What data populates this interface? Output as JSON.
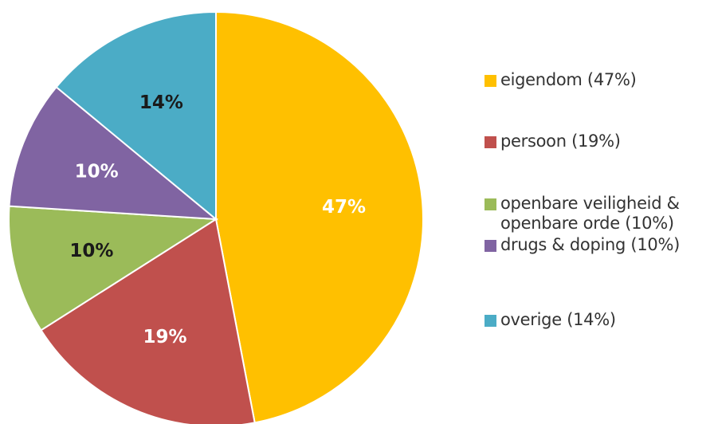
{
  "chart_data": {
    "type": "pie",
    "start": "12 o'clock",
    "direction": "clockwise",
    "slices": [
      {
        "label": "eigendom (47%)",
        "legend_label": "eigendom (47%)",
        "value": 47,
        "data_label": "47%",
        "color": "#FFC000",
        "label_color": "#FFFFFF"
      },
      {
        "label": "persoon (19%)",
        "legend_label": "persoon (19%)",
        "value": 19,
        "data_label": "19%",
        "color": "#C0504D",
        "label_color": "#FFFFFF"
      },
      {
        "label": "openbare veiligheid & openbare orde (10%)",
        "legend_label": "openbare veiligheid &\nopenbare orde (10%)",
        "value": 10,
        "data_label": "10%",
        "color": "#9BBB59",
        "label_color": "#1A1A1A"
      },
      {
        "label": "drugs & doping (10%)",
        "legend_label": "drugs & doping (10%)",
        "value": 10,
        "data_label": "10%",
        "color": "#8064A2",
        "label_color": "#FFFFFF"
      },
      {
        "label": "overige (14%)",
        "legend_label": "overige (14%)",
        "value": 14,
        "data_label": "14%",
        "color": "#4BACC6",
        "label_color": "#1A1A1A"
      }
    ],
    "legend_position": "right"
  }
}
